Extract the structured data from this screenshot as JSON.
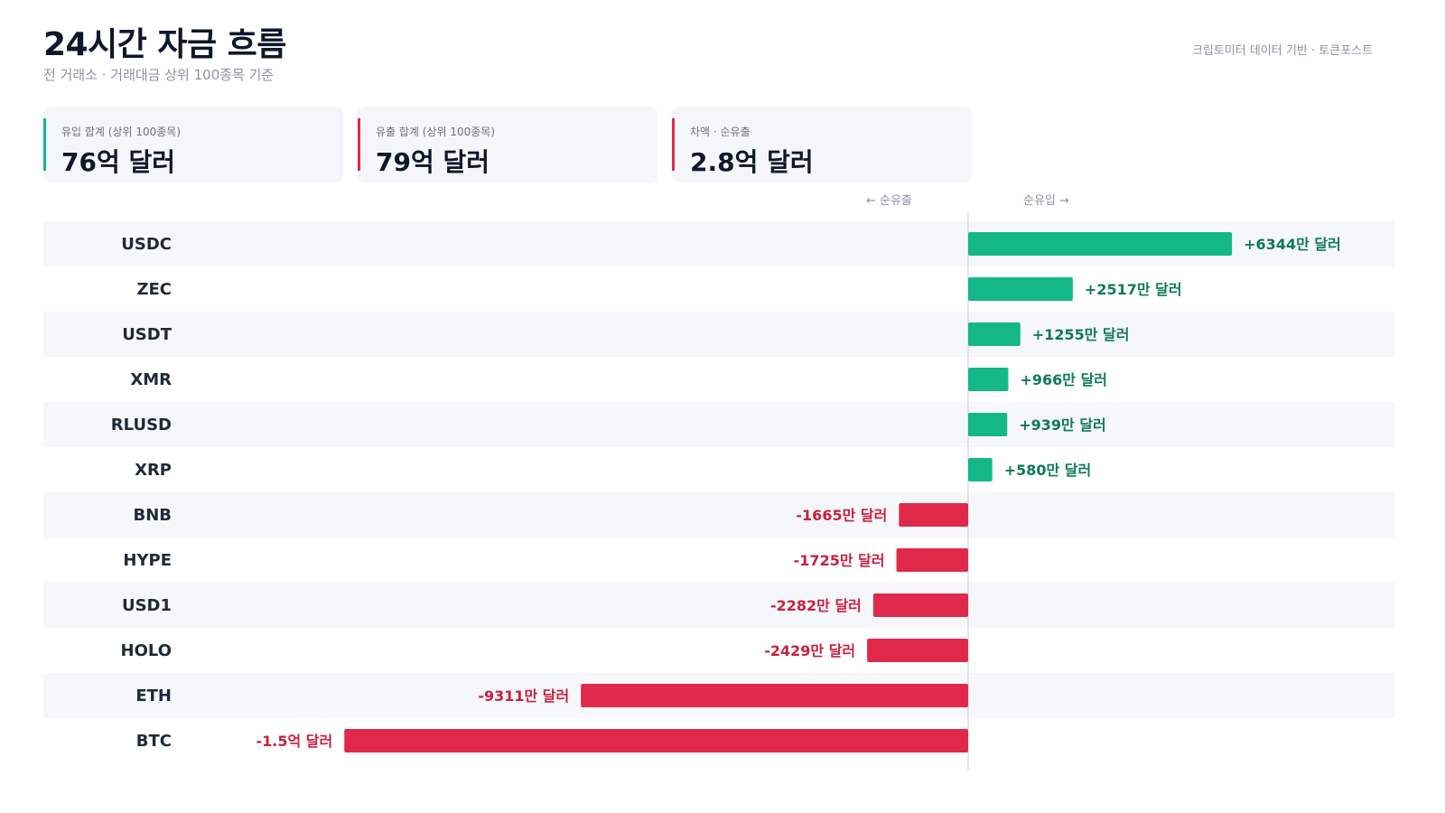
{
  "header": {
    "title": "24시간 자금 흐름",
    "subtitle": "전 거래소 · 거래대금 상위 100종목 기준",
    "source": "크립토미터 데이터 기반 · 토큰포스트"
  },
  "cards": [
    {
      "label": "유입 합계 (상위 100종목)",
      "value": "76억 달러",
      "accent": "#14b886"
    },
    {
      "label": "유출 합계 (상위 100종목)",
      "value": "79억 달러",
      "accent": "#e0284a"
    },
    {
      "label": "차액 · 순유출",
      "value": "2.8억 달러",
      "accent": "#e0284a"
    }
  ],
  "colors": {
    "inflow": "#14b886",
    "outflow": "#e0284a",
    "inflow_text": "#0f7a55",
    "outflow_text": "#c8203f"
  },
  "chart_data": {
    "type": "bar",
    "orientation": "horizontal",
    "direction_labels": {
      "negative": "← 순유출",
      "positive": "순유입 →"
    },
    "unit": "만 달러",
    "categories": [
      "USDC",
      "ZEC",
      "USDT",
      "XMR",
      "RLUSD",
      "XRP",
      "BNB",
      "HYPE",
      "USD1",
      "HOLO",
      "ETH",
      "BTC"
    ],
    "values": [
      6344,
      2517,
      1255,
      966,
      939,
      580,
      -1665,
      -1725,
      -2282,
      -2429,
      -9311,
      -15000
    ],
    "value_labels": [
      "+6344만 달러",
      "+2517만 달러",
      "+1255만 달러",
      "+966만 달러",
      "+939만 달러",
      "+580만 달러",
      "-1665만 달러",
      "-1725만 달러",
      "-2282만 달러",
      "-2429만 달러",
      "-9311만 달러",
      "-1.5억 달러"
    ],
    "grid": false,
    "legend": false
  }
}
